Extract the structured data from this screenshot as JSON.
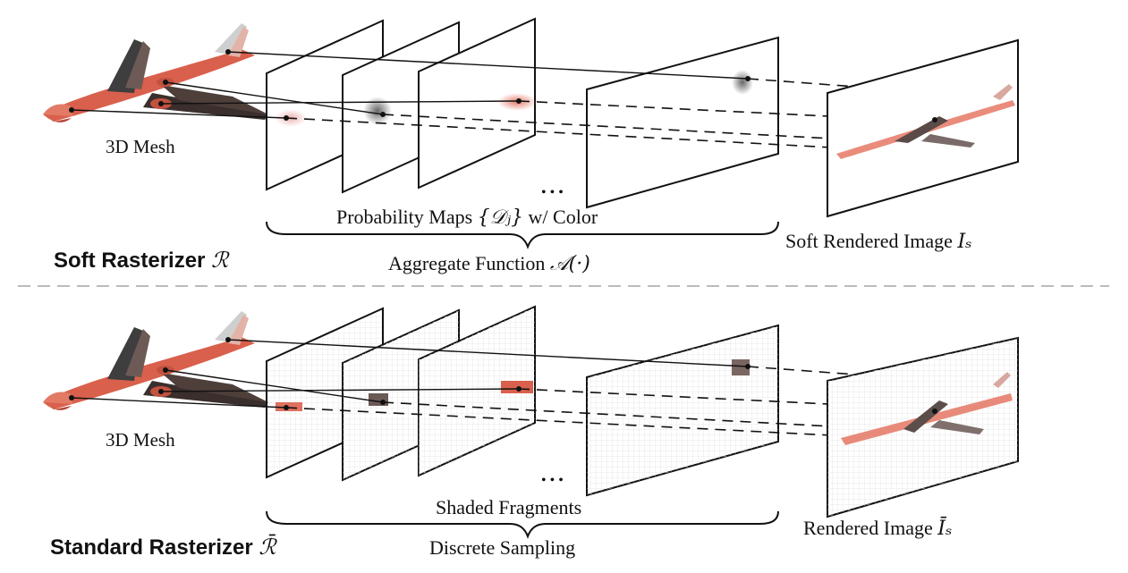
{
  "soft": {
    "mesh_label": "3D Mesh",
    "maps_label": "Probability Maps",
    "maps_symbol": "{𝒟ⱼ}",
    "maps_suffix": "w/ Color",
    "aggregate_label": "Aggregate Function",
    "aggregate_symbol": "𝒜(·)",
    "output_label": "Soft Rendered Image",
    "output_symbol": "Iₛ",
    "title": "Soft Rasterizer",
    "title_symbol": "ℛ",
    "ellipsis": "• • •"
  },
  "standard": {
    "mesh_label": "3D Mesh",
    "fragments_label": "Shaded Fragments",
    "sampling_label": "Discrete Sampling",
    "output_label": "Rendered Image",
    "output_symbol": "Īₛ",
    "title": "Standard Rasterizer",
    "title_symbol": "ℛ̄",
    "ellipsis": "• • •"
  },
  "colors": {
    "plane_stroke": "#111111",
    "mesh_red": "#d9604c",
    "mesh_dark": "#4a3a36",
    "divider": "#bbbbbb"
  }
}
